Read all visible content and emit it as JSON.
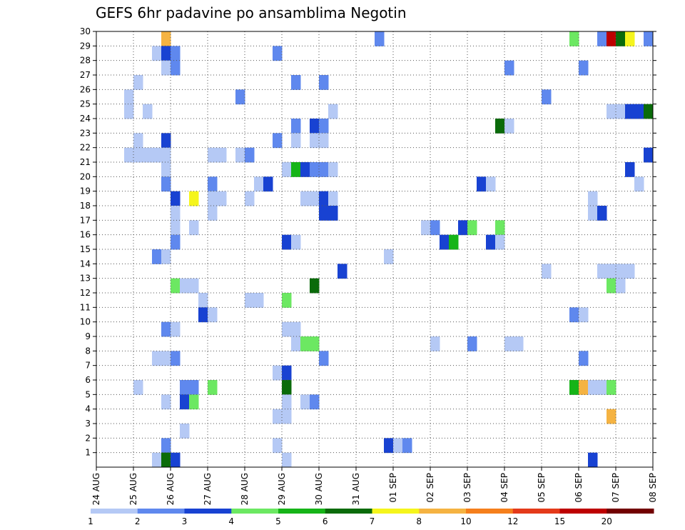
{
  "chart_data": {
    "type": "heatmap",
    "title": "GEFS 6hr padavine po ansamblima Negotin",
    "x_tick_labels": [
      "24 AUG",
      "25 AUG",
      "26 AUG",
      "27 AUG",
      "28 AUG",
      "29 AUG",
      "30 AUG",
      "31 AUG",
      "01 SEP",
      "02 SEP",
      "03 SEP",
      "04 SEP",
      "05 SEP",
      "06 SEP",
      "07 SEP",
      "08 SEP"
    ],
    "steps_per_day": 4,
    "y_range": [
      0,
      30
    ],
    "y_ticks": [
      1,
      2,
      3,
      4,
      5,
      6,
      7,
      8,
      9,
      10,
      11,
      12,
      13,
      14,
      15,
      16,
      17,
      18,
      19,
      20,
      21,
      22,
      23,
      24,
      25,
      26,
      27,
      28,
      29,
      30
    ],
    "grid": true,
    "colorbar": {
      "levels": [
        1,
        2,
        3,
        4,
        5,
        6,
        7,
        8,
        10,
        12,
        15,
        20
      ],
      "colors": [
        "#b5c9f5",
        "#5f88ee",
        "#1842d2",
        "#6ce862",
        "#16b418",
        "#0a6b0a",
        "#f5f51c",
        "#f5b342",
        "#f57f1c",
        "#e43a1a",
        "#bd0000",
        "#720000"
      ]
    },
    "cells": [
      {
        "m": 30,
        "t": 7,
        "v": 9
      },
      {
        "m": 30,
        "t": 30,
        "v": 2
      },
      {
        "m": 30,
        "t": 51,
        "v": 4
      },
      {
        "m": 30,
        "t": 54,
        "v": 2
      },
      {
        "m": 30,
        "t": 55,
        "v": 17
      },
      {
        "m": 30,
        "t": 56,
        "v": 6
      },
      {
        "m": 30,
        "t": 57,
        "v": 7
      },
      {
        "m": 30,
        "t": 59,
        "v": 2
      },
      {
        "m": 29,
        "t": 6,
        "v": 1
      },
      {
        "m": 29,
        "t": 7,
        "v": 3
      },
      {
        "m": 29,
        "t": 8,
        "v": 2
      },
      {
        "m": 29,
        "t": 19,
        "v": 2
      },
      {
        "m": 28,
        "t": 7,
        "v": 1
      },
      {
        "m": 28,
        "t": 8,
        "v": 2
      },
      {
        "m": 28,
        "t": 44,
        "v": 2
      },
      {
        "m": 28,
        "t": 52,
        "v": 2
      },
      {
        "m": 27,
        "t": 4,
        "v": 1
      },
      {
        "m": 27,
        "t": 21,
        "v": 2
      },
      {
        "m": 27,
        "t": 24,
        "v": 2
      },
      {
        "m": 26,
        "t": 3,
        "v": 1
      },
      {
        "m": 26,
        "t": 15,
        "v": 2
      },
      {
        "m": 26,
        "t": 48,
        "v": 2
      },
      {
        "m": 25,
        "t": 3,
        "v": 1
      },
      {
        "m": 25,
        "t": 5,
        "v": 1
      },
      {
        "m": 25,
        "t": 25,
        "v": 1
      },
      {
        "m": 25,
        "t": 55,
        "v": 1
      },
      {
        "m": 25,
        "t": 56,
        "v": 1
      },
      {
        "m": 25,
        "t": 57,
        "v": 3
      },
      {
        "m": 25,
        "t": 58,
        "v": 3
      },
      {
        "m": 25,
        "t": 59,
        "v": 6
      },
      {
        "m": 24,
        "t": 21,
        "v": 2
      },
      {
        "m": 24,
        "t": 23,
        "v": 3
      },
      {
        "m": 24,
        "t": 24,
        "v": 2
      },
      {
        "m": 24,
        "t": 43,
        "v": 6
      },
      {
        "m": 24,
        "t": 44,
        "v": 1
      },
      {
        "m": 23,
        "t": 4,
        "v": 1
      },
      {
        "m": 23,
        "t": 7,
        "v": 3
      },
      {
        "m": 23,
        "t": 19,
        "v": 2
      },
      {
        "m": 23,
        "t": 21,
        "v": 1
      },
      {
        "m": 23,
        "t": 23,
        "v": 1
      },
      {
        "m": 23,
        "t": 24,
        "v": 1
      },
      {
        "m": 22,
        "t": 3,
        "v": 1
      },
      {
        "m": 22,
        "t": 4,
        "v": 1
      },
      {
        "m": 22,
        "t": 5,
        "v": 1
      },
      {
        "m": 22,
        "t": 6,
        "v": 1
      },
      {
        "m": 22,
        "t": 7,
        "v": 1
      },
      {
        "m": 22,
        "t": 12,
        "v": 1
      },
      {
        "m": 22,
        "t": 13,
        "v": 1
      },
      {
        "m": 22,
        "t": 15,
        "v": 1
      },
      {
        "m": 22,
        "t": 16,
        "v": 2
      },
      {
        "m": 22,
        "t": 59,
        "v": 3
      },
      {
        "m": 21,
        "t": 7,
        "v": 1
      },
      {
        "m": 21,
        "t": 20,
        "v": 1
      },
      {
        "m": 21,
        "t": 21,
        "v": 5
      },
      {
        "m": 21,
        "t": 22,
        "v": 3
      },
      {
        "m": 21,
        "t": 23,
        "v": 2
      },
      {
        "m": 21,
        "t": 24,
        "v": 2
      },
      {
        "m": 21,
        "t": 25,
        "v": 1
      },
      {
        "m": 21,
        "t": 57,
        "v": 3
      },
      {
        "m": 20,
        "t": 7,
        "v": 2
      },
      {
        "m": 20,
        "t": 12,
        "v": 2
      },
      {
        "m": 20,
        "t": 17,
        "v": 1
      },
      {
        "m": 20,
        "t": 18,
        "v": 3
      },
      {
        "m": 20,
        "t": 41,
        "v": 3
      },
      {
        "m": 20,
        "t": 42,
        "v": 1
      },
      {
        "m": 20,
        "t": 58,
        "v": 1
      },
      {
        "m": 19,
        "t": 8,
        "v": 3
      },
      {
        "m": 19,
        "t": 10,
        "v": 7
      },
      {
        "m": 19,
        "t": 12,
        "v": 1
      },
      {
        "m": 19,
        "t": 13,
        "v": 1
      },
      {
        "m": 19,
        "t": 16,
        "v": 1
      },
      {
        "m": 19,
        "t": 22,
        "v": 1
      },
      {
        "m": 19,
        "t": 23,
        "v": 1
      },
      {
        "m": 19,
        "t": 24,
        "v": 3
      },
      {
        "m": 19,
        "t": 25,
        "v": 1
      },
      {
        "m": 19,
        "t": 53,
        "v": 1
      },
      {
        "m": 18,
        "t": 8,
        "v": 1
      },
      {
        "m": 18,
        "t": 12,
        "v": 1
      },
      {
        "m": 18,
        "t": 24,
        "v": 3
      },
      {
        "m": 18,
        "t": 25,
        "v": 3
      },
      {
        "m": 18,
        "t": 53,
        "v": 1
      },
      {
        "m": 18,
        "t": 54,
        "v": 3
      },
      {
        "m": 17,
        "t": 8,
        "v": 1
      },
      {
        "m": 17,
        "t": 10,
        "v": 1
      },
      {
        "m": 17,
        "t": 35,
        "v": 1
      },
      {
        "m": 17,
        "t": 36,
        "v": 2
      },
      {
        "m": 17,
        "t": 39,
        "v": 3
      },
      {
        "m": 17,
        "t": 40,
        "v": 4
      },
      {
        "m": 17,
        "t": 43,
        "v": 4
      },
      {
        "m": 16,
        "t": 8,
        "v": 2
      },
      {
        "m": 16,
        "t": 20,
        "v": 3
      },
      {
        "m": 16,
        "t": 21,
        "v": 1
      },
      {
        "m": 16,
        "t": 37,
        "v": 3
      },
      {
        "m": 16,
        "t": 38,
        "v": 5
      },
      {
        "m": 16,
        "t": 42,
        "v": 3
      },
      {
        "m": 16,
        "t": 43,
        "v": 1
      },
      {
        "m": 15,
        "t": 6,
        "v": 2
      },
      {
        "m": 15,
        "t": 7,
        "v": 1
      },
      {
        "m": 15,
        "t": 31,
        "v": 1
      },
      {
        "m": 14,
        "t": 26,
        "v": 3
      },
      {
        "m": 14,
        "t": 48,
        "v": 1
      },
      {
        "m": 14,
        "t": 54,
        "v": 1
      },
      {
        "m": 14,
        "t": 55,
        "v": 1
      },
      {
        "m": 14,
        "t": 56,
        "v": 1
      },
      {
        "m": 14,
        "t": 57,
        "v": 1
      },
      {
        "m": 13,
        "t": 8,
        "v": 4
      },
      {
        "m": 13,
        "t": 9,
        "v": 1
      },
      {
        "m": 13,
        "t": 10,
        "v": 1
      },
      {
        "m": 13,
        "t": 23,
        "v": 6
      },
      {
        "m": 13,
        "t": 55,
        "v": 4
      },
      {
        "m": 13,
        "t": 56,
        "v": 1
      },
      {
        "m": 12,
        "t": 11,
        "v": 1
      },
      {
        "m": 12,
        "t": 16,
        "v": 1
      },
      {
        "m": 12,
        "t": 17,
        "v": 1
      },
      {
        "m": 12,
        "t": 20,
        "v": 4
      },
      {
        "m": 11,
        "t": 11,
        "v": 3
      },
      {
        "m": 11,
        "t": 12,
        "v": 1
      },
      {
        "m": 11,
        "t": 51,
        "v": 2
      },
      {
        "m": 11,
        "t": 52,
        "v": 1
      },
      {
        "m": 10,
        "t": 7,
        "v": 2
      },
      {
        "m": 10,
        "t": 8,
        "v": 1
      },
      {
        "m": 10,
        "t": 20,
        "v": 1
      },
      {
        "m": 10,
        "t": 21,
        "v": 1
      },
      {
        "m": 9,
        "t": 21,
        "v": 1
      },
      {
        "m": 9,
        "t": 22,
        "v": 4
      },
      {
        "m": 9,
        "t": 23,
        "v": 4
      },
      {
        "m": 9,
        "t": 36,
        "v": 1
      },
      {
        "m": 9,
        "t": 40,
        "v": 2
      },
      {
        "m": 9,
        "t": 44,
        "v": 1
      },
      {
        "m": 9,
        "t": 45,
        "v": 1
      },
      {
        "m": 8,
        "t": 6,
        "v": 1
      },
      {
        "m": 8,
        "t": 7,
        "v": 1
      },
      {
        "m": 8,
        "t": 8,
        "v": 2
      },
      {
        "m": 8,
        "t": 24,
        "v": 2
      },
      {
        "m": 8,
        "t": 52,
        "v": 2
      },
      {
        "m": 7,
        "t": 19,
        "v": 1
      },
      {
        "m": 7,
        "t": 20,
        "v": 3
      },
      {
        "m": 6,
        "t": 4,
        "v": 1
      },
      {
        "m": 6,
        "t": 9,
        "v": 2
      },
      {
        "m": 6,
        "t": 10,
        "v": 2
      },
      {
        "m": 6,
        "t": 12,
        "v": 4
      },
      {
        "m": 6,
        "t": 20,
        "v": 6
      },
      {
        "m": 6,
        "t": 51,
        "v": 5
      },
      {
        "m": 6,
        "t": 52,
        "v": 9
      },
      {
        "m": 6,
        "t": 53,
        "v": 1
      },
      {
        "m": 6,
        "t": 54,
        "v": 1
      },
      {
        "m": 6,
        "t": 55,
        "v": 4
      },
      {
        "m": 5,
        "t": 7,
        "v": 1
      },
      {
        "m": 5,
        "t": 9,
        "v": 3
      },
      {
        "m": 5,
        "t": 10,
        "v": 4
      },
      {
        "m": 5,
        "t": 20,
        "v": 1
      },
      {
        "m": 5,
        "t": 22,
        "v": 1
      },
      {
        "m": 5,
        "t": 23,
        "v": 2
      },
      {
        "m": 4,
        "t": 19,
        "v": 1
      },
      {
        "m": 4,
        "t": 20,
        "v": 1
      },
      {
        "m": 4,
        "t": 55,
        "v": 8
      },
      {
        "m": 3,
        "t": 9,
        "v": 1
      },
      {
        "m": 2,
        "t": 7,
        "v": 2
      },
      {
        "m": 2,
        "t": 19,
        "v": 1
      },
      {
        "m": 2,
        "t": 31,
        "v": 3
      },
      {
        "m": 2,
        "t": 32,
        "v": 1
      },
      {
        "m": 2,
        "t": 33,
        "v": 2
      },
      {
        "m": 1,
        "t": 6,
        "v": 1
      },
      {
        "m": 1,
        "t": 7,
        "v": 6
      },
      {
        "m": 1,
        "t": 8,
        "v": 3
      },
      {
        "m": 1,
        "t": 20,
        "v": 1
      },
      {
        "m": 1,
        "t": 53,
        "v": 3
      }
    ]
  }
}
